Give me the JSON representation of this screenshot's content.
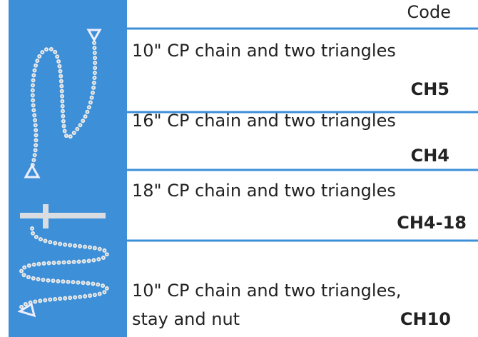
{
  "header": {
    "code": "Code"
  },
  "rows": [
    {
      "description": [
        "10\" CP chain and two triangles"
      ],
      "code": "CH5"
    },
    {
      "description": [
        "16\" CP chain and two triangles"
      ],
      "code": "CH4"
    },
    {
      "description": [
        "18\" CP chain and two triangles"
      ],
      "code": "CH4-18"
    },
    {
      "description": [
        "10\" CP chain and two triangles,",
        "stay and nut"
      ],
      "code": "CH10"
    }
  ]
}
